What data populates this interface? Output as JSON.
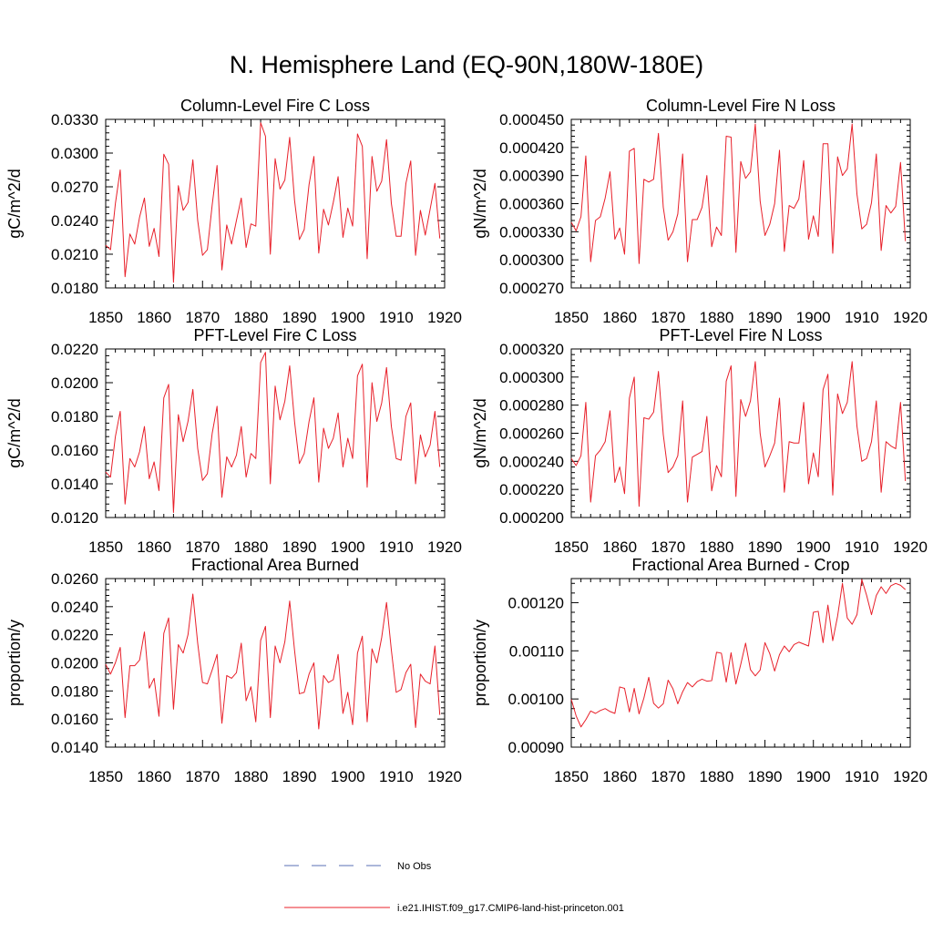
{
  "title": "N. Hemisphere Land (EQ-90N,180W-180E)",
  "legend": {
    "placement": "bottom-center",
    "entries": [
      {
        "label": "No Obs",
        "color": "#5a6fb5",
        "dash": "dashed"
      },
      {
        "label": "i.e21.IHIST.f09_g17.CMIP6-land-hist-princeton.001",
        "color": "#e8202a",
        "dash": "solid"
      }
    ]
  },
  "chart_data": [
    {
      "type": "line",
      "title": "Column-Level Fire C Loss",
      "ylabel": "gC/m^2/d",
      "xlim": [
        1850,
        1920
      ],
      "ylim": [
        0.018,
        0.033
      ],
      "xticks": [
        "1850",
        "1860",
        "1870",
        "1880",
        "1890",
        "1900",
        "1910",
        "1920"
      ],
      "yticks": [
        "0.0180",
        "0.0210",
        "0.0240",
        "0.0270",
        "0.0300",
        "0.0330"
      ],
      "x_start": 1850,
      "series": [
        {
          "color": "#e8202a",
          "values": [
            0.0218,
            0.0214,
            0.0255,
            0.0285,
            0.019,
            0.0228,
            0.0219,
            0.0243,
            0.026,
            0.0217,
            0.0233,
            0.0208,
            0.0299,
            0.029,
            0.0185,
            0.0271,
            0.0249,
            0.0256,
            0.0294,
            0.024,
            0.0209,
            0.0214,
            0.0254,
            0.0289,
            0.0196,
            0.0236,
            0.0219,
            0.024,
            0.026,
            0.0216,
            0.0237,
            0.0235,
            0.0327,
            0.0315,
            0.021,
            0.0295,
            0.0268,
            0.0276,
            0.0314,
            0.0258,
            0.0223,
            0.0232,
            0.0272,
            0.0297,
            0.0211,
            0.025,
            0.0236,
            0.0256,
            0.0279,
            0.0225,
            0.0251,
            0.0235,
            0.0317,
            0.0306,
            0.0206,
            0.0297,
            0.0266,
            0.0275,
            0.0312,
            0.0255,
            0.0226,
            0.0226,
            0.0273,
            0.0293,
            0.0209,
            0.0249,
            0.0227,
            0.025,
            0.0273,
            0.0224
          ]
        }
      ]
    },
    {
      "type": "line",
      "title": "Column-Level Fire N Loss",
      "ylabel": "gN/m^2/d",
      "xlim": [
        1850,
        1920
      ],
      "ylim": [
        0.00027,
        0.00045
      ],
      "xticks": [
        "1850",
        "1860",
        "1870",
        "1880",
        "1890",
        "1900",
        "1910",
        "1920"
      ],
      "yticks": [
        "0.000270",
        "0.000300",
        "0.000330",
        "0.000360",
        "0.000390",
        "0.000420",
        "0.000450"
      ],
      "x_start": 1850,
      "series": [
        {
          "color": "#e8202a",
          "values": [
            0.00034,
            0.000331,
            0.000346,
            0.000411,
            0.000298,
            0.000342,
            0.000346,
            0.000366,
            0.000394,
            0.000322,
            0.000334,
            0.000306,
            0.000416,
            0.000419,
            0.000296,
            0.000386,
            0.000383,
            0.000386,
            0.000435,
            0.000356,
            0.000321,
            0.00033,
            0.000349,
            0.000413,
            0.000298,
            0.000343,
            0.000343,
            0.000356,
            0.00039,
            0.000314,
            0.000335,
            0.000326,
            0.000432,
            0.000431,
            0.000308,
            0.000405,
            0.000387,
            0.000394,
            0.000445,
            0.000363,
            0.000326,
            0.000338,
            0.00036,
            0.000417,
            0.000309,
            0.000358,
            0.000355,
            0.000365,
            0.000406,
            0.000322,
            0.000347,
            0.000325,
            0.000424,
            0.000424,
            0.000307,
            0.00041,
            0.00039,
            0.000397,
            0.000445,
            0.00037,
            0.000333,
            0.000338,
            0.000361,
            0.000413,
            0.00031,
            0.000358,
            0.00035,
            0.000357,
            0.000404,
            0.00032
          ]
        }
      ]
    },
    {
      "type": "line",
      "title": "PFT-Level Fire C Loss",
      "ylabel": "gC/m^2/d",
      "xlim": [
        1850,
        1920
      ],
      "ylim": [
        0.012,
        0.022
      ],
      "xticks": [
        "1850",
        "1860",
        "1870",
        "1880",
        "1890",
        "1900",
        "1910",
        "1920"
      ],
      "yticks": [
        "0.0120",
        "0.0140",
        "0.0160",
        "0.0180",
        "0.0200",
        "0.0220"
      ],
      "x_start": 1850,
      "series": [
        {
          "color": "#e8202a",
          "values": [
            0.0147,
            0.0144,
            0.0168,
            0.0183,
            0.0128,
            0.0155,
            0.015,
            0.0159,
            0.0174,
            0.0143,
            0.0153,
            0.0136,
            0.0191,
            0.0199,
            0.0123,
            0.0181,
            0.0165,
            0.0177,
            0.0196,
            0.0161,
            0.0142,
            0.0146,
            0.017,
            0.0186,
            0.0132,
            0.0156,
            0.015,
            0.0157,
            0.0174,
            0.0144,
            0.0158,
            0.0155,
            0.0212,
            0.0218,
            0.014,
            0.0198,
            0.0178,
            0.0189,
            0.021,
            0.0177,
            0.0152,
            0.0158,
            0.0177,
            0.0191,
            0.0141,
            0.0173,
            0.0161,
            0.0167,
            0.0182,
            0.015,
            0.0167,
            0.0155,
            0.0204,
            0.0211,
            0.0138,
            0.02,
            0.0177,
            0.0188,
            0.0209,
            0.0174,
            0.0155,
            0.0154,
            0.018,
            0.0188,
            0.014,
            0.0169,
            0.0156,
            0.0163,
            0.0183,
            0.015
          ]
        }
      ]
    },
    {
      "type": "line",
      "title": "PFT-Level Fire N Loss",
      "ylabel": "gN/m^2/d",
      "xlim": [
        1850,
        1920
      ],
      "ylim": [
        0.0002,
        0.00032
      ],
      "xticks": [
        "1850",
        "1860",
        "1870",
        "1880",
        "1890",
        "1900",
        "1910",
        "1920"
      ],
      "yticks": [
        "0.000200",
        "0.000220",
        "0.000240",
        "0.000260",
        "0.000280",
        "0.000300",
        "0.000320"
      ],
      "x_start": 1850,
      "series": [
        {
          "color": "#e8202a",
          "values": [
            0.000242,
            0.000237,
            0.000244,
            0.000282,
            0.000211,
            0.000244,
            0.000248,
            0.000254,
            0.000276,
            0.000225,
            0.000236,
            0.000217,
            0.000285,
            0.0003,
            0.000208,
            0.000271,
            0.00027,
            0.000275,
            0.000304,
            0.000259,
            0.000232,
            0.000236,
            0.000244,
            0.000283,
            0.000211,
            0.000243,
            0.000245,
            0.000247,
            0.000272,
            0.000219,
            0.000237,
            0.000229,
            0.000297,
            0.000308,
            0.000215,
            0.000284,
            0.000272,
            0.000283,
            0.000311,
            0.00026,
            0.000236,
            0.000244,
            0.000253,
            0.000285,
            0.000218,
            0.000254,
            0.000253,
            0.000253,
            0.000282,
            0.000224,
            0.000246,
            0.000229,
            0.000291,
            0.000302,
            0.000216,
            0.000288,
            0.000274,
            0.000282,
            0.000311,
            0.000265,
            0.00024,
            0.000242,
            0.000254,
            0.000283,
            0.000218,
            0.000254,
            0.000251,
            0.000249,
            0.000282,
            0.000226
          ]
        }
      ]
    },
    {
      "type": "line",
      "title": "Fractional Area Burned",
      "ylabel": "proportion/y",
      "xlim": [
        1850,
        1920
      ],
      "ylim": [
        0.014,
        0.026
      ],
      "xticks": [
        "1850",
        "1860",
        "1870",
        "1880",
        "1890",
        "1900",
        "1910",
        "1920"
      ],
      "yticks": [
        "0.0140",
        "0.0160",
        "0.0180",
        "0.0200",
        "0.0220",
        "0.0240",
        "0.0260"
      ],
      "x_start": 1850,
      "series": [
        {
          "color": "#e8202a",
          "values": [
            0.0199,
            0.0192,
            0.02,
            0.0211,
            0.0161,
            0.0198,
            0.0198,
            0.0202,
            0.0222,
            0.0182,
            0.0189,
            0.0162,
            0.0221,
            0.0232,
            0.0167,
            0.0213,
            0.0207,
            0.022,
            0.0249,
            0.0214,
            0.0186,
            0.0185,
            0.0195,
            0.0206,
            0.0157,
            0.0191,
            0.0189,
            0.0193,
            0.0214,
            0.0173,
            0.0183,
            0.0158,
            0.0216,
            0.0226,
            0.0161,
            0.0212,
            0.02,
            0.0215,
            0.0244,
            0.0209,
            0.0178,
            0.0179,
            0.0192,
            0.02,
            0.0153,
            0.0191,
            0.0186,
            0.0188,
            0.0206,
            0.0164,
            0.0179,
            0.0156,
            0.0207,
            0.0219,
            0.0158,
            0.021,
            0.02,
            0.0218,
            0.0243,
            0.0209,
            0.0179,
            0.0181,
            0.0193,
            0.0199,
            0.0154,
            0.0192,
            0.0187,
            0.0185,
            0.0212,
            0.0163
          ]
        }
      ]
    },
    {
      "type": "line",
      "title": "Fractional Area Burned - Crop",
      "ylabel": "proportion/y",
      "xlim": [
        1850,
        1920
      ],
      "ylim": [
        0.0009,
        0.00125
      ],
      "xticks": [
        "1850",
        "1860",
        "1870",
        "1880",
        "1890",
        "1900",
        "1910",
        "1920"
      ],
      "yticks": [
        "0.00090",
        "0.00100",
        "0.00110",
        "0.00120"
      ],
      "x_start": 1850,
      "series": [
        {
          "color": "#e8202a",
          "values": [
            0.000999,
            0.000965,
            0.000942,
            0.000957,
            0.000975,
            0.00097,
            0.000976,
            0.00098,
            0.000974,
            0.00097,
            0.001025,
            0.001022,
            0.000973,
            0.001022,
            0.000969,
            0.001002,
            0.001045,
            0.000991,
            0.000981,
            0.00099,
            0.001039,
            0.001021,
            0.00099,
            0.001015,
            0.001034,
            0.001025,
            0.001036,
            0.001041,
            0.001037,
            0.001038,
            0.001097,
            0.001095,
            0.001035,
            0.001096,
            0.001031,
            0.001072,
            0.001116,
            0.001061,
            0.001048,
            0.00106,
            0.001117,
            0.001094,
            0.001058,
            0.001092,
            0.00111,
            0.001098,
            0.001113,
            0.001118,
            0.001114,
            0.00111,
            0.00118,
            0.001182,
            0.001117,
            0.001195,
            0.001121,
            0.001172,
            0.00124,
            0.001168,
            0.001155,
            0.001175,
            0.001248,
            0.001215,
            0.001175,
            0.001215,
            0.001233,
            0.001219,
            0.001235,
            0.00124,
            0.001236,
            0.001227
          ]
        }
      ]
    }
  ]
}
